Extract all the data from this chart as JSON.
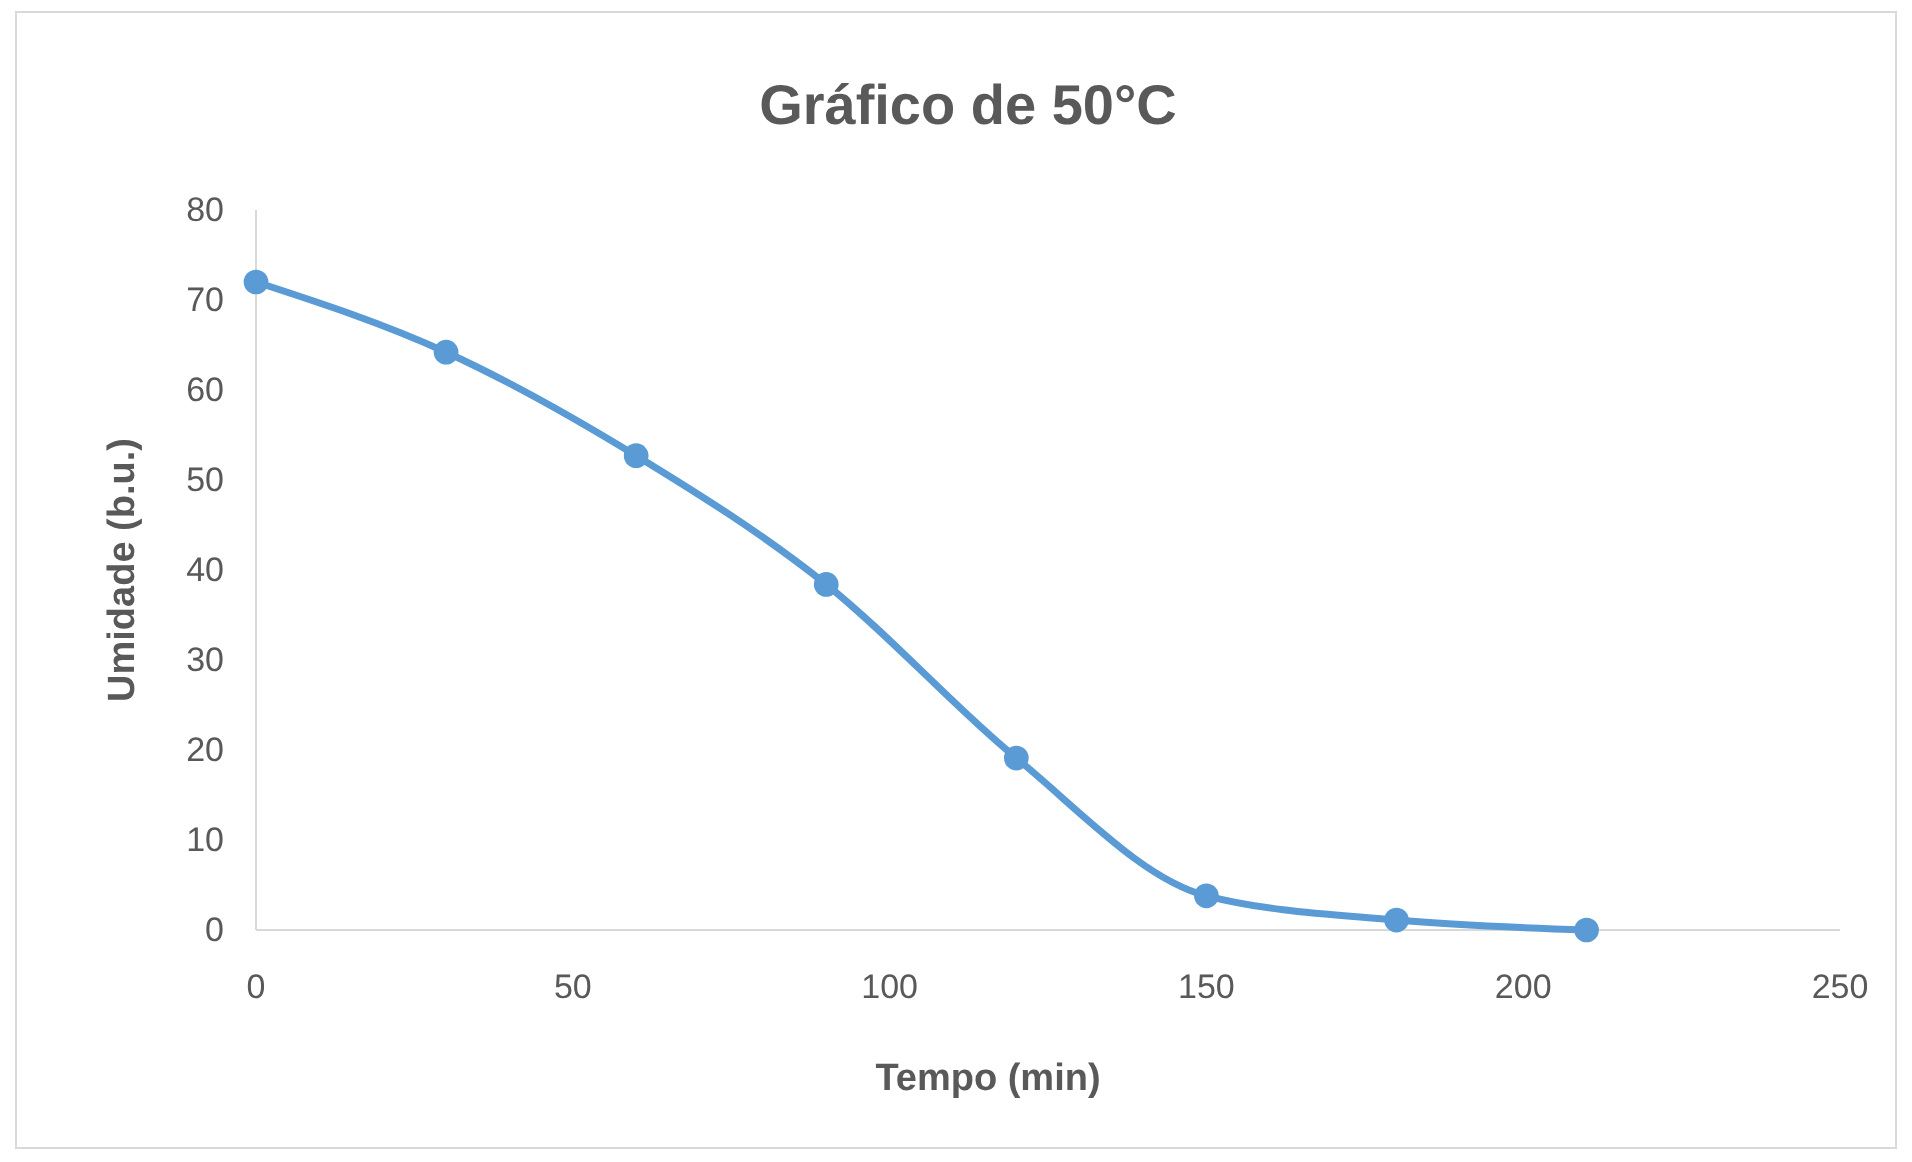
{
  "chart_data": {
    "type": "line",
    "title": "Gráfico de 50°C",
    "xlabel": "Tempo (min)",
    "ylabel": "Umidade (b.u.)",
    "x": [
      0,
      30,
      60,
      90,
      120,
      150,
      180,
      210
    ],
    "series": [
      {
        "color": "#5b9bd5",
        "values": [
          72,
          64.2,
          52.7,
          38.4,
          19.1,
          3.8,
          1.1,
          0
        ]
      }
    ],
    "xlim": [
      0,
      250
    ],
    "xticks": [
      0,
      50,
      100,
      150,
      200,
      250
    ],
    "ylim": [
      0,
      80
    ],
    "yticks": [
      0,
      10,
      20,
      30,
      40,
      50,
      60,
      70,
      80
    ],
    "grid": false,
    "marker": "circle",
    "line_style": "solid"
  }
}
